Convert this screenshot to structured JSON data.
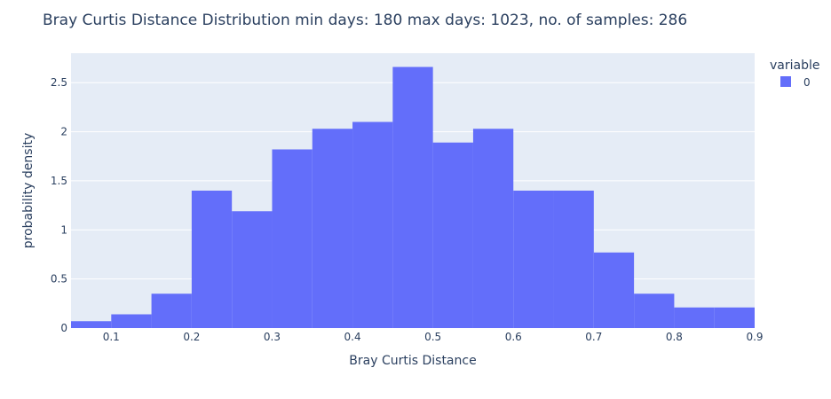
{
  "chart_data": {
    "type": "bar",
    "title": "Bray Curtis Distance Distribution min days: 180 max days: 1023, no. of samples: 286",
    "xlabel": "Bray Curtis Distance",
    "ylabel": "probability density",
    "xlim": [
      0.05,
      0.9
    ],
    "ylim": [
      0,
      2.8
    ],
    "xticks": [
      0.1,
      0.2,
      0.3,
      0.4,
      0.5,
      0.6,
      0.7,
      0.8,
      0.9
    ],
    "yticks": [
      0,
      0.5,
      1,
      1.5,
      2,
      2.5
    ],
    "ytick_labels": [
      "0",
      "0.5",
      "1",
      "1.5",
      "2",
      "2.5"
    ],
    "bin_width": 0.05,
    "grid": true,
    "legend": {
      "title": "variable",
      "placement": "top-right"
    },
    "series": [
      {
        "name": "0",
        "color": "#636efa",
        "bin_starts": [
          0.05,
          0.1,
          0.15,
          0.2,
          0.25,
          0.3,
          0.35,
          0.4,
          0.45,
          0.5,
          0.55,
          0.6,
          0.65,
          0.7,
          0.75,
          0.8,
          0.85
        ],
        "values": [
          0.07,
          0.14,
          0.35,
          1.4,
          1.19,
          1.82,
          2.03,
          2.1,
          2.66,
          1.89,
          2.03,
          1.4,
          1.4,
          0.77,
          0.35,
          0.21,
          0.21
        ]
      }
    ]
  },
  "colors": {
    "plot_bg": "#e5ecf6",
    "grid": "#ffffff",
    "text": "#2a3f5f"
  }
}
